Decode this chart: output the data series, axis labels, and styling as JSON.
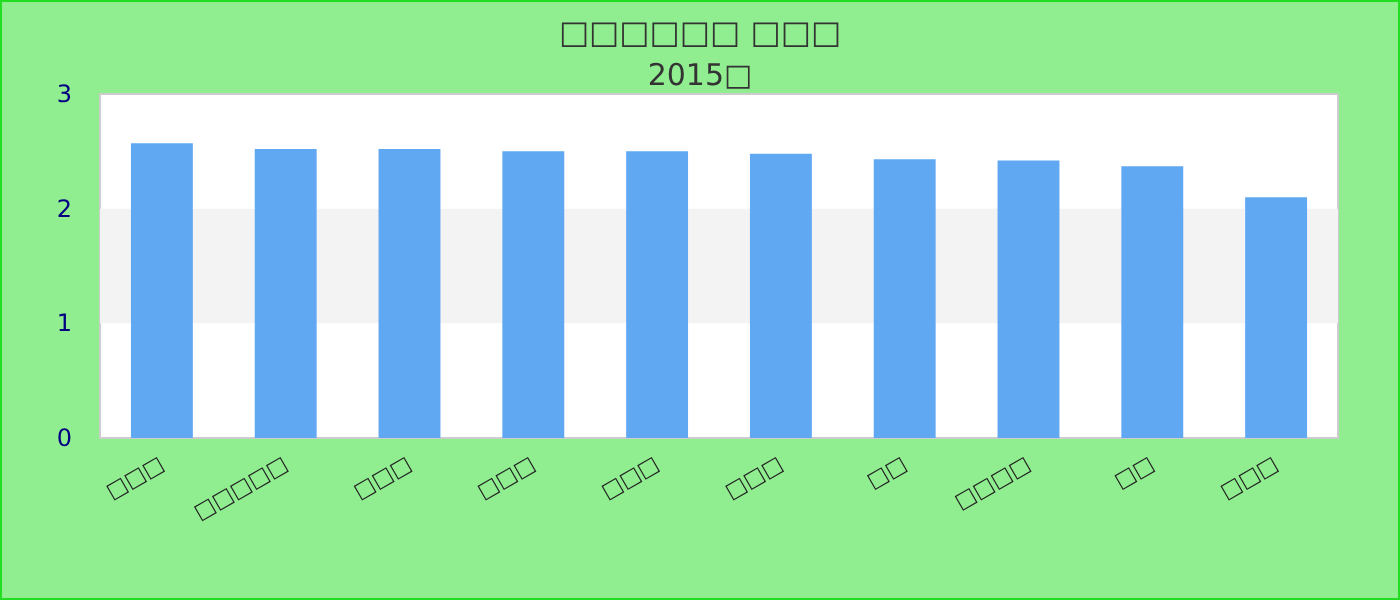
{
  "chart_data": {
    "type": "bar",
    "title": "□□□□□□ □□□",
    "subtitle": "2015□",
    "categories": [
      "□□□",
      "□□□□□",
      "□□□",
      "□□□",
      "□□□",
      "□□□",
      "□□",
      "□□□□",
      "□□",
      "□□□"
    ],
    "values": [
      2.57,
      2.52,
      2.52,
      2.5,
      2.5,
      2.48,
      2.43,
      2.42,
      2.37,
      2.1
    ],
    "color": "#61a8f3",
    "ylim": [
      0,
      3
    ],
    "yticks": [
      0,
      1,
      2,
      3
    ],
    "bands": [
      {
        "axis": "y",
        "from": 1,
        "to": 2,
        "color": "#f3f3f3"
      }
    ]
  }
}
